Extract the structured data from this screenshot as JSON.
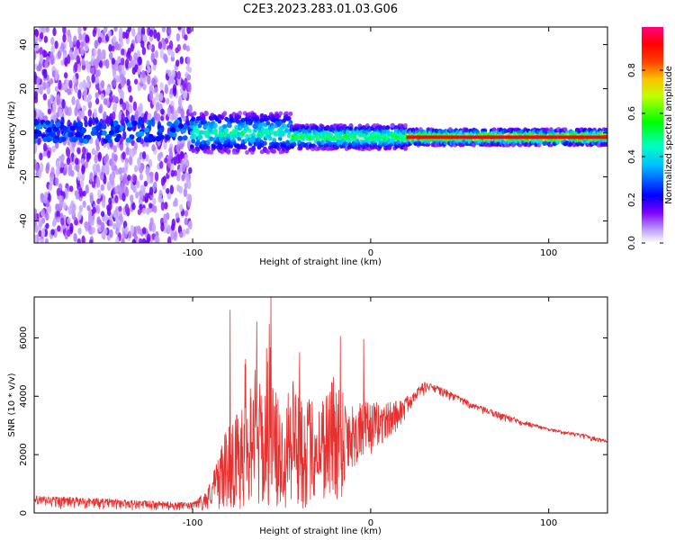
{
  "page_title": "C2E3.2023.283.01.03.G06",
  "chart_data": [
    {
      "type": "heatmap",
      "title": "C2E3.2023.283.01.03.G06",
      "xlabel": "Height of straight line (km)",
      "ylabel": "Frequency (Hz)",
      "xlim": [
        -189,
        133
      ],
      "ylim": [
        -50,
        48
      ],
      "xticks": [
        -100,
        0,
        100
      ],
      "yticks": [
        -40,
        -20,
        0,
        20,
        40
      ],
      "colorbar": {
        "label": "Normalized spectral amplitude",
        "range": [
          0,
          1
        ],
        "ticks": [
          "0.0",
          "0.2",
          "0.4",
          "0.6",
          "0.8"
        ],
        "colormap": [
          "#ffffff",
          "#8000ff",
          "#0000ff",
          "#00ffff",
          "#00ff00",
          "#ffff00",
          "#ff8000",
          "#ff0000",
          "#ff0080"
        ]
      },
      "segments": [
        {
          "region": "noise",
          "x_range": [
            -189,
            -101
          ],
          "freq_range": [
            -50,
            48
          ],
          "amplitude": 0.15
        },
        {
          "region": "signal",
          "x_range": [
            -101,
            -45
          ],
          "center_hz": 0,
          "width_hz": 10,
          "amplitude": 0.5
        },
        {
          "region": "signal",
          "x_range": [
            -45,
            20
          ],
          "center_hz": -2,
          "width_hz": 6,
          "amplitude": 0.6
        },
        {
          "region": "signal",
          "x_range": [
            20,
            133
          ],
          "center_hz": -2,
          "width_hz": 4,
          "amplitude": 0.85
        }
      ],
      "grid": false
    },
    {
      "type": "line",
      "xlabel": "Height of straight line (km)",
      "ylabel": "SNR (10 * v/v)",
      "xlim": [
        -189,
        133
      ],
      "ylim": [
        0,
        7400
      ],
      "xticks": [
        -100,
        0,
        100
      ],
      "yticks": [
        0,
        2000,
        4000,
        6000
      ],
      "color": "#e8302f",
      "envelope": {
        "x": [
          -189,
          -150,
          -120,
          -100,
          -92,
          -88,
          -85,
          -80,
          -75,
          -70,
          -65,
          -60,
          -57,
          -55,
          -50,
          -45,
          -40,
          -35,
          -30,
          -20,
          -17,
          -10,
          0,
          10,
          20,
          25,
          30,
          35,
          40,
          50,
          60,
          70,
          80,
          90,
          100,
          110,
          120,
          133
        ],
        "low": [
          100,
          80,
          60,
          60,
          100,
          300,
          100,
          200,
          0,
          100,
          200,
          0,
          300,
          100,
          0,
          200,
          0,
          200,
          500,
          200,
          400,
          1500,
          2000,
          2500,
          3200,
          3800,
          4000,
          4100,
          3900,
          3700,
          3400,
          3200,
          3000,
          2900,
          2800,
          2650,
          2500,
          2350
        ],
        "high": [
          600,
          500,
          400,
          350,
          800,
          1500,
          2200,
          3000,
          3500,
          5500,
          5000,
          4000,
          7300,
          4500,
          3500,
          5500,
          4200,
          4000,
          3800,
          5000,
          4600,
          3800,
          3800,
          3800,
          4000,
          4200,
          4500,
          4400,
          4300,
          4000,
          3700,
          3500,
          3300,
          3100,
          2900,
          2800,
          2700,
          2500
        ]
      },
      "spikes": [
        {
          "x": -79,
          "y": 6950
        },
        {
          "x": -64,
          "y": 6550
        },
        {
          "x": -56,
          "y": 7400
        },
        {
          "x": -40,
          "y": 5500
        },
        {
          "x": -17,
          "y": 6050
        },
        {
          "x": -4,
          "y": 5950
        }
      ],
      "grid": false
    }
  ]
}
